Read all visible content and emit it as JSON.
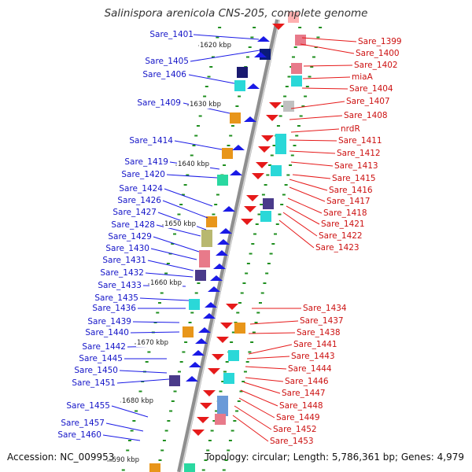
{
  "title": "Salinispora arenicola CNS-205, complete genome",
  "footer": {
    "accession": "Accession: NC_009953",
    "summary": "Topology: circular; Length: 5,786,361 bp; Genes: 4,979"
  },
  "colors": {
    "left_label": "#1515c8",
    "right_label": "#cc1111",
    "backbone": "#8f8f8f",
    "dots": "#1f8f1f"
  },
  "kbp_marks": [
    "1620 kbp",
    "1630 kbp",
    "1640 kbp",
    "1650 kbp",
    "1660 kbp",
    "1670 kbp",
    "1680 kbp",
    "1690 kbp"
  ],
  "left_labels": [
    "Sare_1401",
    "Sare_1405",
    "Sare_1406",
    "Sare_1409",
    "Sare_1414",
    "Sare_1419",
    "Sare_1420",
    "Sare_1424",
    "Sare_1426",
    "Sare_1427",
    "Sare_1428",
    "Sare_1429",
    "Sare_1430",
    "Sare_1431",
    "Sare_1432",
    "Sare_1433",
    "Sare_1435",
    "Sare_1436",
    "Sare_1439",
    "Sare_1440",
    "Sare_1442",
    "Sare_1445",
    "Sare_1450",
    "Sare_1451",
    "Sare_1455",
    "Sare_1457",
    "Sare_1460"
  ],
  "right_labels": [
    "Sare_1399",
    "Sare_1400",
    "Sare_1402",
    "miaA",
    "Sare_1404",
    "Sare_1407",
    "Sare_1408",
    "nrdR",
    "Sare_1411",
    "Sare_1412",
    "Sare_1413",
    "Sare_1415",
    "Sare_1416",
    "Sare_1417",
    "Sare_1418",
    "Sare_1421",
    "Sare_1422",
    "Sare_1423",
    "Sare_1434",
    "Sare_1437",
    "Sare_1438",
    "Sare_1441",
    "Sare_1443",
    "Sare_1444",
    "Sare_1446",
    "Sare_1447",
    "Sare_1448",
    "Sare_1449",
    "Sare_1452",
    "Sare_1453"
  ]
}
